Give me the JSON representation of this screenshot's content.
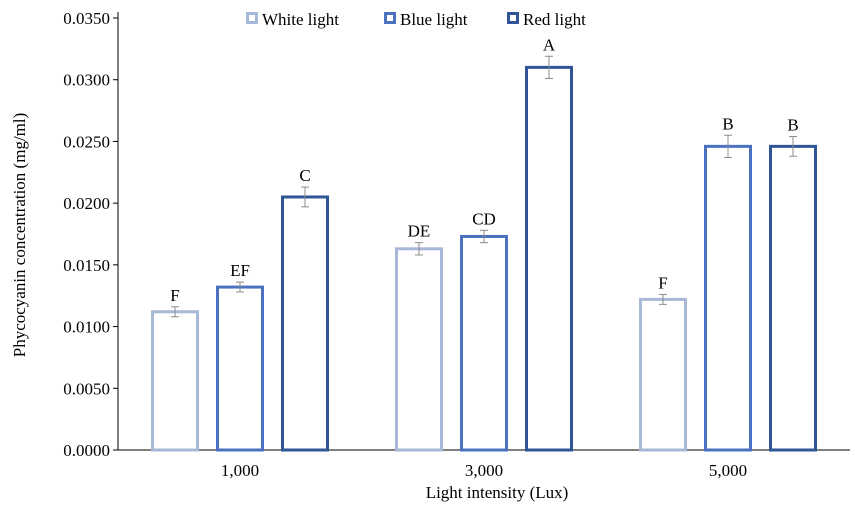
{
  "chart_data": {
    "type": "bar",
    "xlabel": "Light intensity (Lux)",
    "ylabel": "Phycocyanin concentration (mg/ml)",
    "ylim": [
      0,
      0.035
    ],
    "yticks": [
      "0.0000",
      "0.0050",
      "0.0100",
      "0.0150",
      "0.0200",
      "0.0250",
      "0.0300",
      "0.0350"
    ],
    "categories": [
      "1,000",
      "3,000",
      "5,000"
    ],
    "legend_position": "top",
    "series": [
      {
        "name": "White light",
        "color": "#a8b8d8",
        "values": [
          0.0112,
          0.0163,
          0.0122
        ],
        "errors": [
          0.0004,
          0.0005,
          0.0004
        ],
        "labels": [
          "F",
          "DE",
          "F"
        ]
      },
      {
        "name": "Blue light",
        "color": "#4a72c0",
        "values": [
          0.0132,
          0.0173,
          0.0246
        ],
        "errors": [
          0.0004,
          0.0005,
          0.0009
        ],
        "labels": [
          "EF",
          "CD",
          "B"
        ]
      },
      {
        "name": "Red light",
        "color": "#2f5597",
        "values": [
          0.0205,
          0.031,
          0.0246
        ],
        "errors": [
          0.0008,
          0.0009,
          0.0008
        ],
        "labels": [
          "C",
          "A",
          "B"
        ]
      }
    ]
  }
}
